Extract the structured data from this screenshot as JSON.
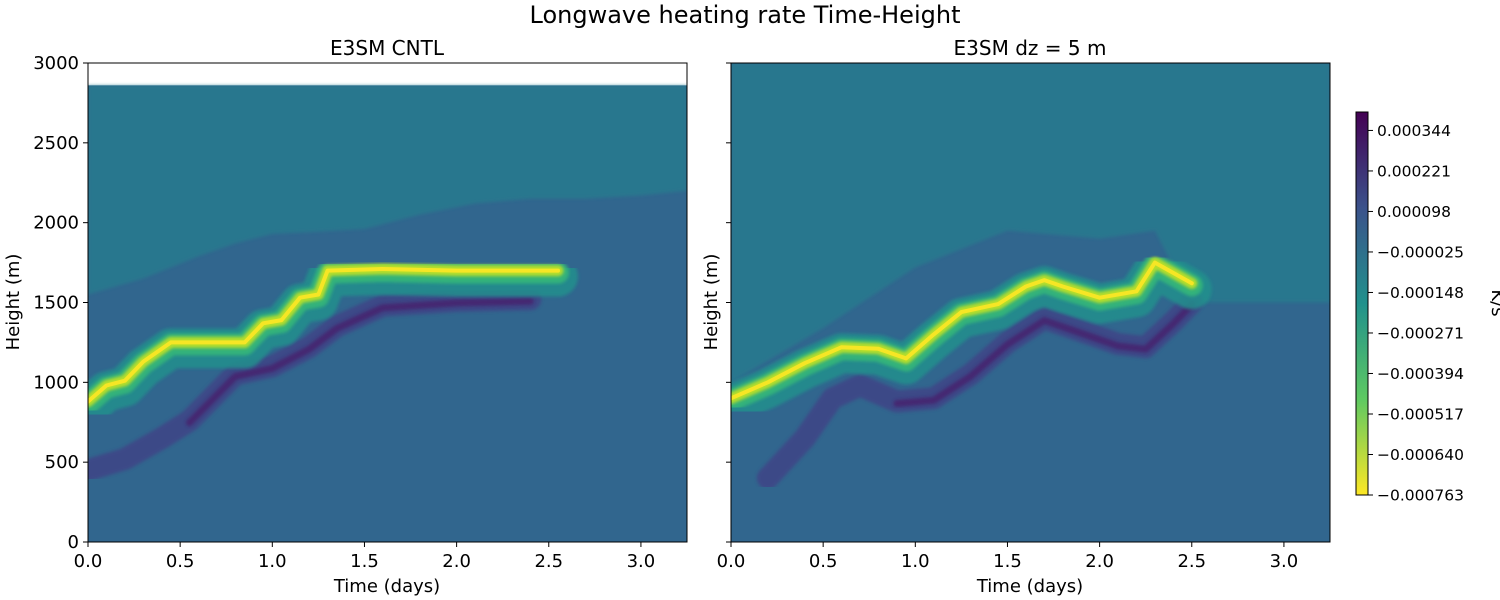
{
  "figure": {
    "suptitle": "Longwave heating rate Time-Height"
  },
  "chart_data": [
    {
      "type": "heatmap",
      "title": "E3SM CNTL",
      "xlabel": "Time (days)",
      "ylabel": "Height (m)",
      "xlim": [
        0,
        3.25
      ],
      "ylim": [
        0,
        3000
      ],
      "xticks": [
        "0.0",
        "0.5",
        "1.0",
        "1.5",
        "2.0",
        "2.5",
        "3.0"
      ],
      "xtick_values": [
        0,
        0.5,
        1.0,
        1.5,
        2.0,
        2.5,
        3.0
      ],
      "yticks": [
        "0",
        "500",
        "1000",
        "1500",
        "2000",
        "2500",
        "3000"
      ],
      "ytick_values": [
        0,
        500,
        1000,
        1500,
        2000,
        2500,
        3000
      ],
      "data_top_height": 2860,
      "background_value": -2.5e-05,
      "upper_band": [
        [
          0,
          1550
        ],
        [
          0.3,
          1650
        ],
        [
          0.6,
          1790
        ],
        [
          0.8,
          1870
        ],
        [
          1.0,
          1930
        ],
        [
          1.2,
          1940
        ],
        [
          1.5,
          1960
        ],
        [
          1.8,
          2050
        ],
        [
          2.1,
          2120
        ],
        [
          2.4,
          2150
        ],
        [
          2.7,
          2150
        ],
        [
          3.0,
          2170
        ],
        [
          3.25,
          2200
        ]
      ],
      "cooling_layer": [
        [
          0.0,
          880
        ],
        [
          0.1,
          980
        ],
        [
          0.2,
          1010
        ],
        [
          0.3,
          1130
        ],
        [
          0.45,
          1250
        ],
        [
          0.85,
          1250
        ],
        [
          0.95,
          1370
        ],
        [
          1.05,
          1390
        ],
        [
          1.15,
          1530
        ],
        [
          1.25,
          1550
        ],
        [
          1.3,
          1700
        ],
        [
          1.6,
          1710
        ],
        [
          2.0,
          1700
        ],
        [
          2.55,
          1700
        ]
      ],
      "cooling_end_time": 2.55,
      "warming_layer": [
        [
          0.0,
          450
        ],
        [
          0.2,
          520
        ],
        [
          0.4,
          650
        ],
        [
          0.55,
          760
        ],
        [
          0.8,
          1050
        ],
        [
          1.0,
          1100
        ],
        [
          1.2,
          1220
        ],
        [
          1.35,
          1350
        ],
        [
          1.6,
          1480
        ],
        [
          2.0,
          1510
        ],
        [
          2.4,
          1520
        ]
      ]
    },
    {
      "type": "heatmap",
      "title": "E3SM dz = 5 m",
      "xlabel": "Time (days)",
      "ylabel": "Height (m)",
      "xlim": [
        0,
        3.25
      ],
      "ylim": [
        0,
        3000
      ],
      "xticks": [
        "0.0",
        "0.5",
        "1.0",
        "1.5",
        "2.0",
        "2.5",
        "3.0"
      ],
      "xtick_values": [
        0,
        0.5,
        1.0,
        1.5,
        2.0,
        2.5,
        3.0
      ],
      "data_top_height": 3000,
      "background_value": -2.5e-05,
      "upper_band": [
        [
          0,
          1000
        ],
        [
          0.5,
          1340
        ],
        [
          1.0,
          1720
        ],
        [
          1.5,
          1950
        ],
        [
          2.0,
          1900
        ],
        [
          2.3,
          1950
        ],
        [
          2.5,
          1500
        ],
        [
          3.25,
          1500
        ]
      ],
      "cooling_layer": [
        [
          0.0,
          900
        ],
        [
          0.2,
          1000
        ],
        [
          0.4,
          1120
        ],
        [
          0.6,
          1220
        ],
        [
          0.8,
          1210
        ],
        [
          0.95,
          1150
        ],
        [
          1.1,
          1300
        ],
        [
          1.25,
          1440
        ],
        [
          1.45,
          1490
        ],
        [
          1.6,
          1600
        ],
        [
          1.7,
          1640
        ],
        [
          1.8,
          1600
        ],
        [
          2.0,
          1530
        ],
        [
          2.2,
          1570
        ],
        [
          2.3,
          1750
        ],
        [
          2.5,
          1620
        ]
      ],
      "cooling_end_time": 2.5,
      "warming_layer": [
        [
          0.2,
          400
        ],
        [
          0.4,
          650
        ],
        [
          0.55,
          900
        ],
        [
          0.7,
          980
        ],
        [
          0.9,
          880
        ],
        [
          1.1,
          900
        ],
        [
          1.3,
          1050
        ],
        [
          1.5,
          1250
        ],
        [
          1.7,
          1400
        ],
        [
          1.9,
          1320
        ],
        [
          2.1,
          1240
        ],
        [
          2.25,
          1220
        ],
        [
          2.4,
          1380
        ],
        [
          2.5,
          1500
        ]
      ]
    }
  ],
  "colorbar": {
    "label": "K/s",
    "ticks": [
      "0.000344",
      "0.000221",
      "0.000098",
      "−0.000025",
      "−0.000148",
      "−0.000271",
      "−0.000394",
      "−0.000517",
      "−0.000640",
      "−0.000763"
    ],
    "tick_values": [
      0.000344,
      0.000221,
      9.8e-05,
      -2.5e-05,
      -0.000148,
      -0.000271,
      -0.000394,
      -0.000517,
      -0.00064,
      -0.000763
    ],
    "range": [
      -0.000763,
      0.0004
    ],
    "colormap": "viridis (reversed: yellow = strongest cooling)",
    "colors": {
      "background": "#31668e",
      "upper_band": "#287d8e",
      "purple": "#433e85",
      "dark_purple": "#46226e",
      "teal": "#21908d",
      "green": "#35b779",
      "yellow_green": "#b5de2b",
      "yellow": "#fde725",
      "cbar_stops": [
        "#440154",
        "#3b528b",
        "#21918c",
        "#5ec962",
        "#fde725"
      ]
    }
  }
}
